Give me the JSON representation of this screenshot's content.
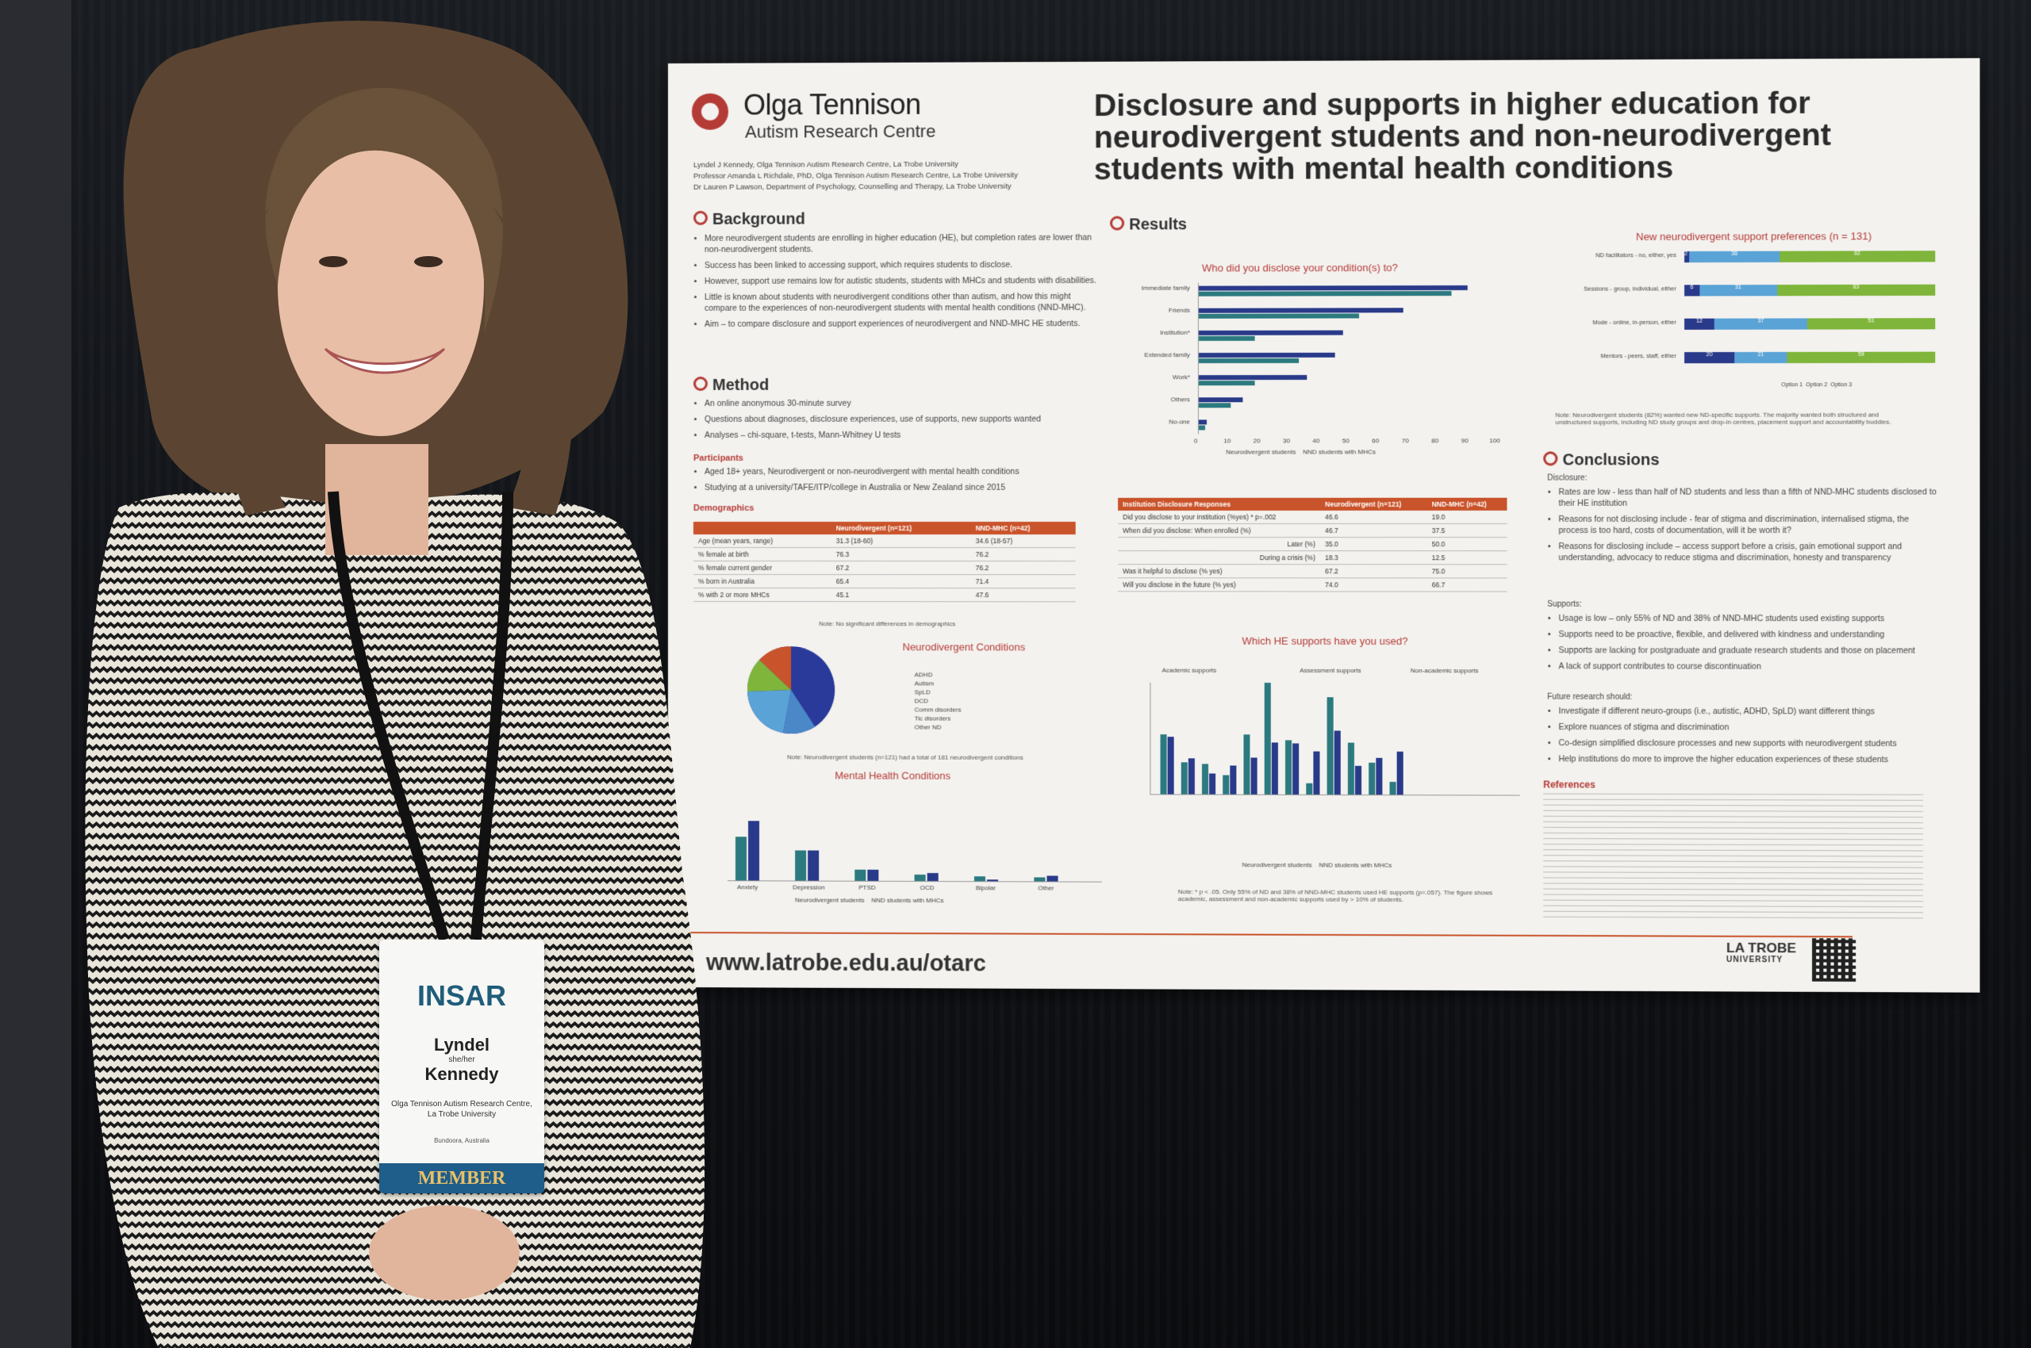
{
  "poster": {
    "org_name": "Olga Tennison",
    "org_sub": "Autism Research Centre",
    "authors": [
      "Lyndel J Kennedy, Olga Tennison Autism Research Centre, La Trobe University",
      "Professor Amanda L Richdale, PhD, Olga Tennison Autism Research Centre, La Trobe University",
      "Dr Lauren P Lawson, Department of Psychology, Counselling and Therapy, La Trobe University"
    ],
    "title": "Disclosure and supports in higher education for neurodivergent students and non-neurodivergent students with mental health conditions",
    "background": {
      "heading": "Background",
      "items": [
        "More neurodivergent students are enrolling in higher education (HE), but completion rates are lower than non-neurodivergent students.",
        "Success has been linked to accessing support, which requires students to disclose.",
        "However, support use remains low for autistic students, students with MHCs and students with disabilities.",
        "Little is known about students with neurodivergent conditions other than autism, and how this might compare to the experiences of non-neurodivergent students with mental health conditions (NND-MHC).",
        "Aim – to compare disclosure and support experiences of neurodivergent and NND-MHC HE students."
      ]
    },
    "method": {
      "heading": "Method",
      "items": [
        "An online anonymous 30-minute survey",
        "Questions about diagnoses, disclosure experiences, use of supports, new supports wanted",
        "Analyses – chi-square, t-tests, Mann-Whitney U tests"
      ],
      "participants_heading": "Participants",
      "participants": [
        "Aged 18+ years, Neurodivergent or non-neurodivergent with mental health conditions",
        "Studying at a university/TAFE/ITP/college in Australia or New Zealand since 2015"
      ]
    },
    "demographics": {
      "heading": "Demographics",
      "headers": [
        "",
        "Neurodivergent (n=121)",
        "NND-MHC (n=42)"
      ],
      "rows": [
        [
          "Age (mean years, range)",
          "31.3 (18-60)",
          "34.6 (18-57)"
        ],
        [
          "% female at birth",
          "76.3",
          "76.2"
        ],
        [
          "% female current gender",
          "67.2",
          "76.2"
        ],
        [
          "% born in Australia",
          "65.4",
          "71.4"
        ],
        [
          "% with 2 or more MHCs",
          "45.1",
          "47.6"
        ]
      ],
      "note": "Note: No significant differences in demographics"
    },
    "nd_conditions": {
      "title": "Neurodivergent Conditions",
      "legend": [
        "ADHD",
        "Autism",
        "SpLD",
        "DCD",
        "Comm disorders",
        "Tic disorders",
        "Other ND"
      ],
      "note": "Note: Neurodivergent students (n=121) had a total of 181 neurodivergent conditions"
    },
    "mental_health": {
      "title": "Mental Health Conditions",
      "categories": [
        "Anxiety",
        "Depression",
        "PTSD",
        "OCD",
        "Bipolar",
        "Other"
      ],
      "legend": [
        "Neurodivergent students",
        "NND students with MHCs"
      ]
    },
    "results": {
      "heading": "Results",
      "disclose_title": "Who did you disclose your condition(s) to?",
      "disclose_categories": [
        "Immediate family",
        "Friends",
        "Institution*",
        "Extended family",
        "Work*",
        "Others",
        "No-one"
      ],
      "disclose_ticks": [
        "0",
        "10",
        "20",
        "30",
        "40",
        "50",
        "60",
        "70",
        "80",
        "90",
        "100"
      ],
      "disclose_legend": [
        "Neurodivergent students",
        "NND students with MHCs"
      ],
      "inst_table": {
        "headers": [
          "Institution Disclosure Responses",
          "Neurodivergent (n=121)",
          "NND-MHC (n=42)"
        ],
        "rows": [
          [
            "Did you disclose to your institution (%yes) * p=.002",
            "46.6",
            "19.0"
          ],
          [
            "When did you disclose:   When enrolled (%)",
            "46.7",
            "37.5"
          ],
          [
            "Later (%)",
            "35.0",
            "50.0"
          ],
          [
            "During a crisis (%)",
            "18.3",
            "12.5"
          ],
          [
            "Was it helpful to disclose (% yes)",
            "67.2",
            "75.0"
          ],
          [
            "Will you disclose in the future (% yes)",
            "74.0",
            "66.7"
          ]
        ]
      },
      "supports_title": "Which HE supports have you used?",
      "supports_groups": [
        "Academic supports",
        "Assessment supports",
        "Non-academic supports"
      ],
      "supports_legend": [
        "Neurodivergent students",
        "NND students with MHCs"
      ],
      "supports_note": "Note: * p < .05. Only 55% of ND and 38% of NND-MHC students used HE supports (p=.057). The figure shows academic, assessment and non-academic supports used by > 10% of students."
    },
    "preferences": {
      "title": "New neurodivergent support preferences (n = 131)",
      "rows": [
        {
          "label": "ND facilitators - no, either, yes",
          "values": [
            "2",
            "36",
            "62"
          ]
        },
        {
          "label": "Sessions - group, individual, either",
          "values": [
            "6",
            "31",
            "63"
          ]
        },
        {
          "label": "Mode - online, in-person, either",
          "values": [
            "12",
            "37",
            "51"
          ]
        },
        {
          "label": "Mentors - peers, staff, either",
          "values": [
            "20",
            "21",
            "59"
          ]
        }
      ],
      "legend": [
        "Option 1",
        "Option 2",
        "Option 3"
      ],
      "note": "Note: Neurodivergent students (82%) wanted new ND-specific supports. The majority wanted both structured and unstructured supports, including ND study groups and drop-in centres, placement support and accountability buddies."
    },
    "conclusions": {
      "heading": "Conclusions",
      "disclosure_label": "Disclosure:",
      "disclosure": [
        "Rates are low - less than half of ND students and less than a fifth of NND-MHC students disclosed to their HE institution",
        "Reasons for not disclosing include - fear of stigma and discrimination, internalised stigma, the process is too hard, costs of documentation, will it be worth it?",
        "Reasons for disclosing include – access support before a crisis, gain emotional support and understanding, advocacy to reduce stigma and discrimination, honesty and transparency"
      ],
      "supports_label": "Supports:",
      "supports": [
        "Usage is low – only 55% of ND and 38% of NND-MHC students used existing supports",
        "Supports need to be proactive, flexible, and delivered with kindness and understanding",
        "Supports are lacking for postgraduate and graduate research students and those on placement",
        "A lack of support contributes to course discontinuation"
      ],
      "future_label": "Future research should:",
      "future": [
        "Investigate if different neuro-groups (i.e., autistic, ADHD, SpLD) want different things",
        "Explore nuances of stigma and discrimination",
        "Co-design simplified disclosure processes and new supports with neurodivergent students",
        "Help institutions do more to improve the higher education experiences of these students"
      ]
    },
    "references_heading": "References",
    "url": "www.latrobe.edu.au/otarc",
    "lt_logo_main": "LA TROBE",
    "lt_logo_sub": "UNIVERSITY"
  },
  "badge": {
    "logo": "INSAR",
    "first_name": "Lyndel",
    "pronouns": "she/her",
    "last_name": "Kennedy",
    "affiliation": "Olga Tennison Autism Research Centre, La Trobe University",
    "location": "Bundoora, Australia",
    "member": "MEMBER"
  },
  "colors": {
    "accent_red": "#b53b36",
    "accent_orange": "#c9532a",
    "navy": "#2a3a8a",
    "teal": "#2c7a7f",
    "light_blue": "#5aa3d6",
    "green": "#7fb53a"
  }
}
